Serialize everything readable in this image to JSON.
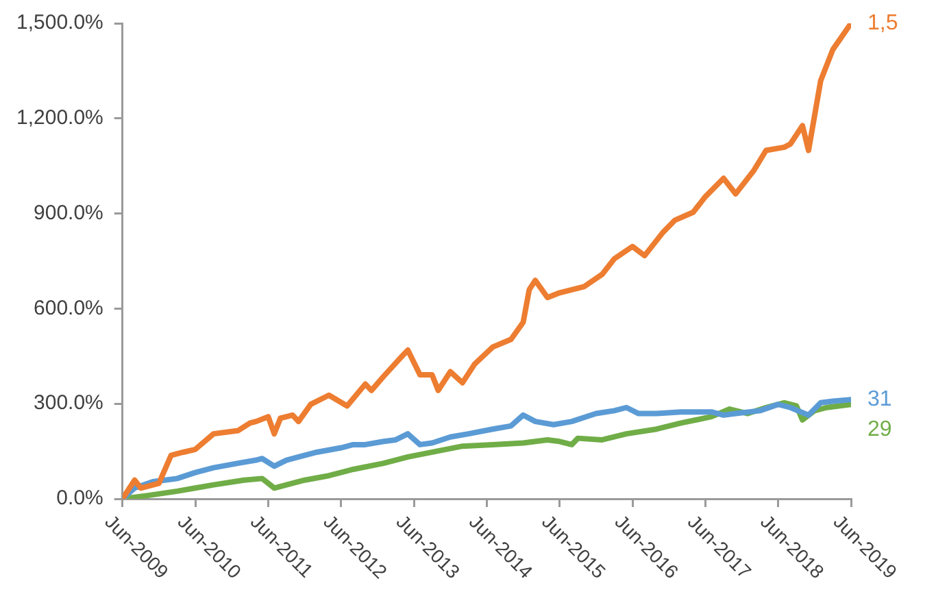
{
  "chart_data": {
    "type": "line",
    "annotations": [
      "1,5",
      "31",
      "29"
    ],
    "series": [
      {
        "color": "#ed7d31",
        "x": [
          "2009-06",
          "2009-08",
          "2009-09",
          "2009-12",
          "2010-02",
          "2010-04",
          "2010-06",
          "2010-09",
          "2011-01",
          "2011-03",
          "2011-04",
          "2011-06",
          "2011-07",
          "2011-08",
          "2011-10",
          "2011-11",
          "2012-01",
          "2012-04",
          "2012-07",
          "2012-10",
          "2012-11",
          "2013-01",
          "2013-04",
          "2013-05",
          "2013-07",
          "2013-09",
          "2013-10",
          "2013-12",
          "2014-02",
          "2014-04",
          "2014-07",
          "2014-10",
          "2014-12",
          "2015-01",
          "2015-02",
          "2015-04",
          "2015-06",
          "2015-10",
          "2016-01",
          "2016-03",
          "2016-06",
          "2016-08",
          "2016-11",
          "2017-01",
          "2017-04",
          "2017-06",
          "2017-09",
          "2017-11",
          "2018-02",
          "2018-04",
          "2018-07",
          "2018-08",
          "2018-10",
          "2018-11",
          "2019-01",
          "2019-03",
          "2019-06"
        ],
        "values": [
          0,
          59,
          34,
          49,
          137,
          147,
          156,
          205,
          215,
          239,
          244,
          259,
          205,
          254,
          264,
          244,
          298,
          327,
          293,
          362,
          342,
          386,
          449,
          469,
          391,
          391,
          342,
          401,
          366,
          425,
          479,
          503,
          557,
          660,
          689,
          635,
          650,
          669,
          708,
          757,
          796,
          767,
          840,
          879,
          904,
          953,
          1011,
          962,
          1036,
          1099,
          1109,
          1119,
          1177,
          1099,
          1319,
          1417,
          1500
        ]
      },
      {
        "color": "#5b9bd5",
        "x": [
          "2009-06",
          "2009-08",
          "2009-11",
          "2010-03",
          "2010-06",
          "2010-09",
          "2011-01",
          "2011-04",
          "2011-05",
          "2011-07",
          "2011-09",
          "2011-11",
          "2012-02",
          "2012-06",
          "2012-08",
          "2012-10",
          "2013-01",
          "2013-03",
          "2013-05",
          "2013-07",
          "2013-09",
          "2013-12",
          "2014-03",
          "2014-07",
          "2014-10",
          "2014-12",
          "2015-02",
          "2015-05",
          "2015-08",
          "2015-12",
          "2016-03",
          "2016-05",
          "2016-07",
          "2016-10",
          "2017-02",
          "2017-07",
          "2017-09",
          "2017-11",
          "2018-03",
          "2018-06",
          "2018-08",
          "2018-11",
          "2019-01",
          "2019-03",
          "2019-06"
        ],
        "values": [
          0,
          34,
          54,
          64,
          83,
          98,
          112,
          122,
          127,
          103,
          122,
          132,
          147,
          161,
          171,
          171,
          181,
          186,
          205,
          171,
          176,
          195,
          205,
          220,
          230,
          264,
          244,
          234,
          244,
          269,
          278,
          288,
          269,
          269,
          274,
          274,
          264,
          269,
          278,
          298,
          288,
          264,
          303,
          308,
          313
        ]
      },
      {
        "color": "#70ad47",
        "x": [
          "2009-06",
          "2009-10",
          "2010-03",
          "2010-06",
          "2010-09",
          "2011-02",
          "2011-05",
          "2011-07",
          "2011-09",
          "2011-12",
          "2012-04",
          "2012-08",
          "2013-01",
          "2013-05",
          "2013-10",
          "2014-02",
          "2014-07",
          "2014-12",
          "2015-04",
          "2015-06",
          "2015-08",
          "2015-09",
          "2016-01",
          "2016-05",
          "2016-10",
          "2017-02",
          "2017-07",
          "2017-10",
          "2018-01",
          "2018-04",
          "2018-07",
          "2018-09",
          "2018-10",
          "2018-12",
          "2019-02",
          "2019-04",
          "2019-06"
        ],
        "values": [
          0,
          10,
          24,
          34,
          44,
          59,
          64,
          34,
          44,
          59,
          73,
          93,
          112,
          132,
          151,
          166,
          171,
          176,
          186,
          181,
          171,
          191,
          186,
          205,
          220,
          239,
          259,
          283,
          269,
          288,
          303,
          293,
          249,
          278,
          288,
          293,
          298
        ]
      }
    ],
    "xlim": [
      "2009-06",
      "2019-06"
    ],
    "xticks": [
      {
        "value": "2009-06",
        "label": "Jun-2009"
      },
      {
        "value": "2010-06",
        "label": "Jun-2010"
      },
      {
        "value": "2011-06",
        "label": "Jun-2011"
      },
      {
        "value": "2012-06",
        "label": "Jun-2012"
      },
      {
        "value": "2013-06",
        "label": "Jun-2013"
      },
      {
        "value": "2014-06",
        "label": "Jun-2014"
      },
      {
        "value": "2015-06",
        "label": "Jun-2015"
      },
      {
        "value": "2016-06",
        "label": "Jun-2016"
      },
      {
        "value": "2017-06",
        "label": "Jun-2017"
      },
      {
        "value": "2018-06",
        "label": "Jun-2018"
      },
      {
        "value": "2019-06",
        "label": "Jun-2019"
      }
    ],
    "ylim": [
      0,
      1500
    ],
    "yticks": [
      {
        "value": 0,
        "label": "0.0%"
      },
      {
        "value": 300,
        "label": "300.0%"
      },
      {
        "value": 600,
        "label": "600.0%"
      },
      {
        "value": 900,
        "label": "900.0%"
      },
      {
        "value": 1200,
        "label": "1,200.0%"
      },
      {
        "value": 1500,
        "label": "1,500.0%"
      }
    ],
    "grid": false,
    "legend": false,
    "marker": "none",
    "line_style": "solid"
  }
}
